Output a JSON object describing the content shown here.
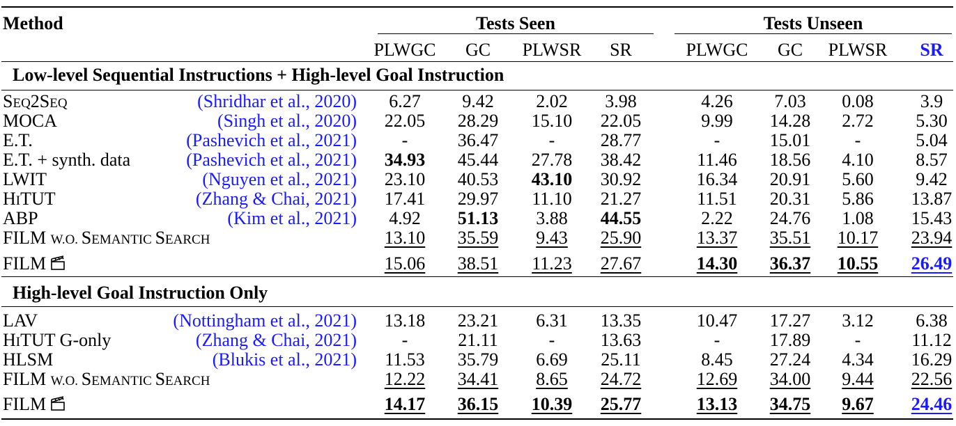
{
  "header": {
    "method_label": "Method",
    "group_seen": "Tests Seen",
    "group_unseen": "Tests Unseen",
    "columns": [
      "PLWGC",
      "GC",
      "PLWSR",
      "SR",
      "PLWGC",
      "GC",
      "PLWSR",
      "SR"
    ]
  },
  "sections": [
    {
      "title": "Low-level Sequential Instructions + High-level Goal Instruction",
      "rows": [
        {
          "method_parts": [
            {
              "t": "S",
              "big": true
            },
            {
              "t": "EQ",
              "big": false
            },
            {
              "t": "2S",
              "big": true
            },
            {
              "t": "EQ",
              "big": false
            }
          ],
          "cite": "Shridhar et al., ",
          "cite_year": "2020",
          "cells": [
            {
              "v": "6.27"
            },
            {
              "v": "9.42"
            },
            {
              "v": "2.02"
            },
            {
              "v": "3.98"
            },
            {
              "v": "4.26"
            },
            {
              "v": "7.03"
            },
            {
              "v": "0.08"
            },
            {
              "v": "3.9"
            }
          ]
        },
        {
          "method": "MOCA",
          "cite": "Singh et al., ",
          "cite_year": "2020",
          "cells": [
            {
              "v": "22.05"
            },
            {
              "v": "28.29"
            },
            {
              "v": "15.10"
            },
            {
              "v": "22.05"
            },
            {
              "v": "9.99"
            },
            {
              "v": "14.28"
            },
            {
              "v": "2.72"
            },
            {
              "v": "5.30"
            }
          ]
        },
        {
          "method": "E.T.",
          "cite": "Pashevich et al., ",
          "cite_year": "2021",
          "cells": [
            {
              "v": "-"
            },
            {
              "v": "36.47"
            },
            {
              "v": "-"
            },
            {
              "v": "28.77"
            },
            {
              "v": "-"
            },
            {
              "v": "15.01"
            },
            {
              "v": "-"
            },
            {
              "v": "5.04"
            }
          ]
        },
        {
          "method": "E.T. + synth. data",
          "cite": "Pashevich et al., ",
          "cite_year": "2021",
          "cells": [
            {
              "v": "34.93",
              "b": true
            },
            {
              "v": "45.44"
            },
            {
              "v": "27.78"
            },
            {
              "v": "38.42"
            },
            {
              "v": "11.46"
            },
            {
              "v": "18.56"
            },
            {
              "v": "4.10"
            },
            {
              "v": "8.57"
            }
          ]
        },
        {
          "method": "LWIT",
          "cite": "Nguyen et al., ",
          "cite_year": "2021",
          "cells": [
            {
              "v": "23.10"
            },
            {
              "v": "40.53"
            },
            {
              "v": "43.10",
              "b": true
            },
            {
              "v": "30.92"
            },
            {
              "v": "16.34"
            },
            {
              "v": "20.91"
            },
            {
              "v": "5.60"
            },
            {
              "v": "9.42"
            }
          ]
        },
        {
          "method_parts": [
            {
              "t": "H",
              "big": true
            },
            {
              "t": "I",
              "big": false
            },
            {
              "t": "TUT",
              "big": true
            }
          ],
          "cite": "Zhang & Chai, ",
          "cite_year": "2021",
          "cells": [
            {
              "v": "17.41"
            },
            {
              "v": "29.97"
            },
            {
              "v": "11.10"
            },
            {
              "v": "21.27"
            },
            {
              "v": "11.51"
            },
            {
              "v": "20.31"
            },
            {
              "v": "5.86"
            },
            {
              "v": "13.87"
            }
          ]
        },
        {
          "method": "ABP",
          "cite": "Kim et al., ",
          "cite_year": "2021",
          "cells": [
            {
              "v": "4.92"
            },
            {
              "v": "51.13",
              "b": true
            },
            {
              "v": "3.88"
            },
            {
              "v": "44.55",
              "b": true
            },
            {
              "v": "2.22"
            },
            {
              "v": "24.76"
            },
            {
              "v": "1.08"
            },
            {
              "v": "15.43"
            }
          ]
        },
        {
          "method_parts": [
            {
              "t": "FILM ",
              "big": true
            },
            {
              "t": "W.O. ",
              "big": false
            },
            {
              "t": "S",
              "big": true
            },
            {
              "t": "EMANTIC ",
              "big": false
            },
            {
              "t": "S",
              "big": true
            },
            {
              "t": "EARCH",
              "big": false
            }
          ],
          "cells": [
            {
              "v": "13.10",
              "u": true
            },
            {
              "v": "35.59",
              "u": true
            },
            {
              "v": "9.43",
              "u": true
            },
            {
              "v": "25.90",
              "u": true
            },
            {
              "v": "13.37",
              "u": true
            },
            {
              "v": "35.51",
              "u": true
            },
            {
              "v": "10.17",
              "u": true
            },
            {
              "v": "23.94",
              "u": true
            }
          ]
        },
        {
          "method": "FILM",
          "icon": "clapperboard-icon",
          "cells": [
            {
              "v": "15.06",
              "u": true
            },
            {
              "v": "38.51",
              "u": true
            },
            {
              "v": "11.23",
              "u": true
            },
            {
              "v": "27.67",
              "u": true
            },
            {
              "v": "14.30",
              "u": true,
              "b": true
            },
            {
              "v": "36.37",
              "u": true,
              "b": true
            },
            {
              "v": "10.55",
              "u": true,
              "b": true
            },
            {
              "v": "26.49",
              "u": true,
              "b": true,
              "blue": true
            }
          ]
        }
      ]
    },
    {
      "title": "High-level Goal Instruction Only",
      "rows": [
        {
          "method": "LAV",
          "cite": "Nottingham et al., ",
          "cite_year": "2021",
          "cells": [
            {
              "v": "13.18"
            },
            {
              "v": "23.21"
            },
            {
              "v": "6.31"
            },
            {
              "v": "13.35"
            },
            {
              "v": "10.47"
            },
            {
              "v": "17.27"
            },
            {
              "v": "3.12"
            },
            {
              "v": "6.38"
            }
          ]
        },
        {
          "method_parts": [
            {
              "t": "H",
              "big": true
            },
            {
              "t": "I",
              "big": false
            },
            {
              "t": "TUT G-only",
              "big": true
            }
          ],
          "cite": "Zhang & Chai, ",
          "cite_year": "2021",
          "cells": [
            {
              "v": "-"
            },
            {
              "v": "21.11"
            },
            {
              "v": "-"
            },
            {
              "v": "13.63"
            },
            {
              "v": "-"
            },
            {
              "v": "17.89"
            },
            {
              "v": "-"
            },
            {
              "v": "11.12"
            }
          ]
        },
        {
          "method": "HLSM",
          "cite": "Blukis et al., ",
          "cite_year": "2021",
          "cells": [
            {
              "v": "11.53"
            },
            {
              "v": "35.79"
            },
            {
              "v": "6.69"
            },
            {
              "v": "25.11"
            },
            {
              "v": "8.45"
            },
            {
              "v": "27.24"
            },
            {
              "v": "4.34"
            },
            {
              "v": "16.29"
            }
          ]
        },
        {
          "method_parts": [
            {
              "t": "FILM ",
              "big": true
            },
            {
              "t": "W.O. ",
              "big": false
            },
            {
              "t": "S",
              "big": true
            },
            {
              "t": "EMANTIC ",
              "big": false
            },
            {
              "t": "S",
              "big": true
            },
            {
              "t": "EARCH",
              "big": false
            }
          ],
          "cells": [
            {
              "v": "12.22",
              "u": true
            },
            {
              "v": "34.41",
              "u": true
            },
            {
              "v": "8.65",
              "u": true
            },
            {
              "v": "24.72",
              "u": true
            },
            {
              "v": "12.69",
              "u": true
            },
            {
              "v": "34.00",
              "u": true
            },
            {
              "v": "9.44",
              "u": true
            },
            {
              "v": "22.56",
              "u": true
            }
          ]
        },
        {
          "method": "FILM",
          "icon": "clapperboard-icon",
          "cells": [
            {
              "v": "14.17",
              "u": true,
              "b": true
            },
            {
              "v": "36.15",
              "u": true,
              "b": true
            },
            {
              "v": "10.39",
              "u": true,
              "b": true
            },
            {
              "v": "25.77",
              "u": true,
              "b": true
            },
            {
              "v": "13.13",
              "u": true,
              "b": true
            },
            {
              "v": "34.75",
              "u": true,
              "b": true
            },
            {
              "v": "9.67",
              "u": true,
              "b": true
            },
            {
              "v": "24.46",
              "u": true,
              "b": true,
              "blue": true
            }
          ]
        }
      ]
    }
  ],
  "colors": {
    "link_blue": "#1a1aff",
    "text": "#000000"
  }
}
